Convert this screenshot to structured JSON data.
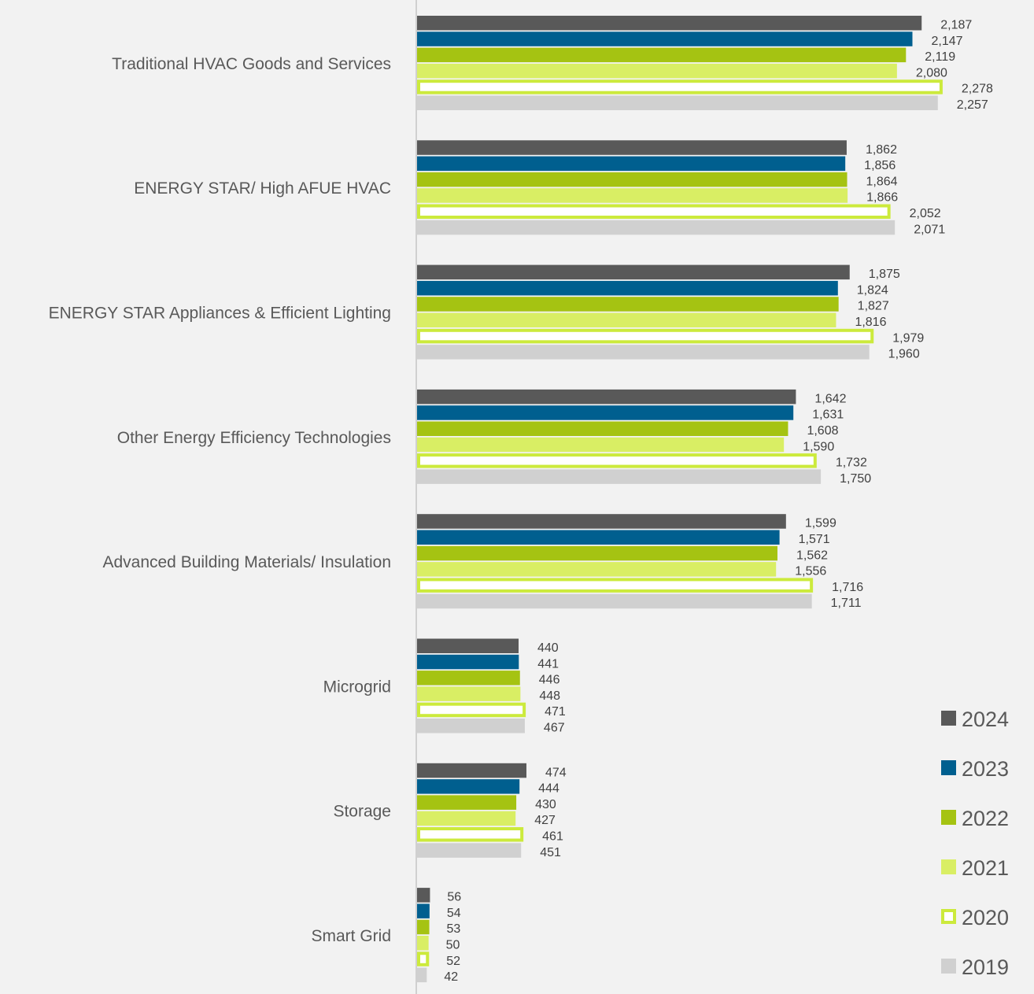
{
  "chart_data": {
    "type": "bar",
    "orientation": "horizontal",
    "title": "",
    "xlabel": "",
    "ylabel": "",
    "xlim": [
      0,
      2400
    ],
    "grid": false,
    "legend_position": "bottom-right",
    "categories": [
      "Traditional HVAC Goods and Services",
      "ENERGY STAR/ High AFUE HVAC",
      "ENERGY STAR Appliances & Efficient Lighting",
      "Other Energy Efficiency Technologies",
      "Advanced Building Materials/ Insulation",
      "Microgrid",
      "Storage",
      "Smart Grid"
    ],
    "series": [
      {
        "name": "2024",
        "color": "#595959",
        "style": "solid",
        "values": [
          2187,
          1862,
          1875,
          1642,
          1599,
          440,
          474,
          56
        ],
        "labels": [
          "2,187",
          "1,862",
          "1,875",
          "1,642",
          "1,599",
          "440",
          "474",
          "56"
        ]
      },
      {
        "name": "2023",
        "color": "#005f8f",
        "style": "solid",
        "values": [
          2147,
          1856,
          1824,
          1631,
          1571,
          441,
          444,
          54
        ],
        "labels": [
          "2,147",
          "1,856",
          "1,824",
          "1,631",
          "1,571",
          "441",
          "444",
          "54"
        ]
      },
      {
        "name": "2022",
        "color": "#a5c312",
        "style": "solid",
        "values": [
          2119,
          1864,
          1827,
          1608,
          1562,
          446,
          430,
          53
        ],
        "labels": [
          "2,119",
          "1,864",
          "1,827",
          "1,608",
          "1,562",
          "446",
          "430",
          "53"
        ]
      },
      {
        "name": "2021",
        "color": "#d9ee64",
        "style": "solid",
        "values": [
          2080,
          1866,
          1816,
          1590,
          1556,
          448,
          427,
          50
        ],
        "labels": [
          "2,080",
          "1,866",
          "1,816",
          "1,590",
          "1,556",
          "448",
          "427",
          "50"
        ]
      },
      {
        "name": "2020",
        "color": "#ccea3c",
        "style": "outline",
        "values": [
          2278,
          2052,
          1979,
          1732,
          1716,
          471,
          461,
          52
        ],
        "labels": [
          "2,278",
          "2,052",
          "1,979",
          "1,732",
          "1,716",
          "471",
          "461",
          "52"
        ]
      },
      {
        "name": "2019",
        "color": "#d0d0d0",
        "style": "solid",
        "values": [
          2257,
          2071,
          1960,
          1750,
          1711,
          467,
          451,
          42
        ],
        "labels": [
          "2,257",
          "2,071",
          "1,960",
          "1,750",
          "1,711",
          "467",
          "451",
          "42"
        ]
      }
    ]
  }
}
